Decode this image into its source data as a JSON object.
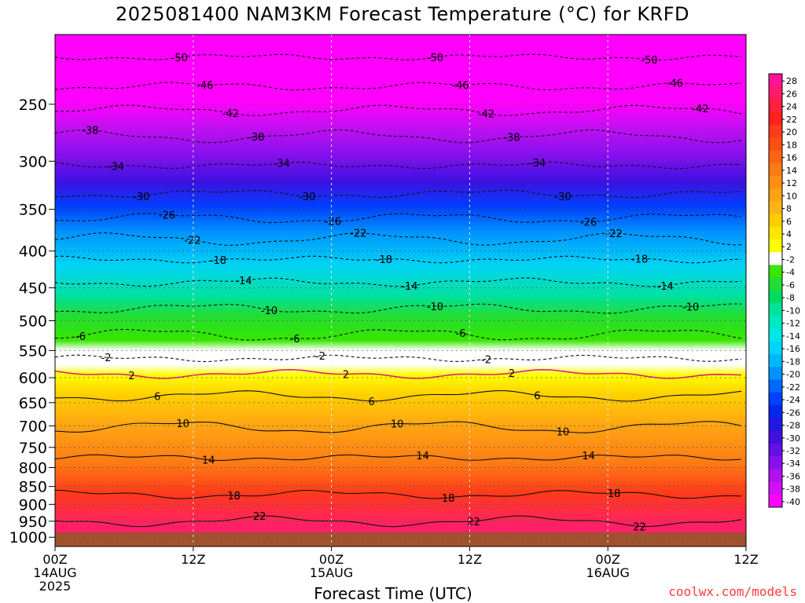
{
  "chart": {
    "title": "2025081400 NAM3KM Forecast Temperature (°C) for KRFD",
    "xlabel": "Forecast Time (UTC)",
    "credit": "coolwx.com/models"
  },
  "chart_data": {
    "type": "heatmap",
    "title": "2025081400 NAM3KM Forecast Temperature (°C) for KRFD",
    "xlabel": "Forecast Time (UTC)",
    "ylabel": "",
    "x_ticks": [
      {
        "hour": 0,
        "line1": "00Z",
        "line2": "14AUG",
        "line3": "2025"
      },
      {
        "hour": 12,
        "line1": "12Z",
        "line2": "",
        "line3": ""
      },
      {
        "hour": 24,
        "line1": "00Z",
        "line2": "15AUG",
        "line3": ""
      },
      {
        "hour": 36,
        "line1": "12Z",
        "line2": "",
        "line3": ""
      },
      {
        "hour": 48,
        "line1": "00Z",
        "line2": "16AUG",
        "line3": ""
      },
      {
        "hour": 60,
        "line1": "12Z",
        "line2": "",
        "line3": ""
      }
    ],
    "xlim_hours": [
      0,
      60
    ],
    "y_ticks": [
      250,
      300,
      350,
      400,
      450,
      500,
      550,
      600,
      650,
      700,
      750,
      800,
      850,
      900,
      950,
      1000
    ],
    "ylim": [
      200,
      1030
    ],
    "y_scale": "log (pressure)",
    "grid": true,
    "colorbar": {
      "labels": [
        "28",
        "26",
        "24",
        "22",
        "20",
        "18",
        "16",
        "14",
        "12",
        "10",
        "8",
        "6",
        "4",
        "2",
        "-2",
        "-4",
        "-6",
        "-8",
        "-10",
        "-12",
        "-14",
        "-16",
        "-18",
        "-20",
        "-22",
        "-24",
        "-26",
        "-28",
        "-30",
        "-32",
        "-34",
        "-36",
        "-38",
        "-40"
      ],
      "colors": [
        "#ff1493",
        "#ff1a6b",
        "#ff1f3f",
        "#ff2020",
        "#ff3a1a",
        "#ff4e14",
        "#ff6414",
        "#ff7a14",
        "#ff8f14",
        "#ffa114",
        "#ffb414",
        "#ffcc00",
        "#ffe600",
        "#ffff00",
        "#ffffff",
        "#38e600",
        "#22dd33",
        "#00dc62",
        "#00e398",
        "#00e8c4",
        "#00e8e8",
        "#00d4ff",
        "#00b8ff",
        "#0092ff",
        "#0068ff",
        "#0040ff",
        "#0028ee",
        "#2018e0",
        "#4010e0",
        "#6410e6",
        "#8a10ee",
        "#b010f2",
        "#d010f8",
        "#ff00ff"
      ]
    },
    "isotherms": [
      {
        "label": "-50",
        "p": 215
      },
      {
        "label": "-46",
        "p": 236
      },
      {
        "label": "-42",
        "p": 255
      },
      {
        "label": "-38",
        "p": 277
      },
      {
        "label": "-34",
        "p": 304
      },
      {
        "label": "-30",
        "p": 333
      },
      {
        "label": "-26",
        "p": 360
      },
      {
        "label": "-22",
        "p": 385
      },
      {
        "label": "-18",
        "p": 411
      },
      {
        "label": "-14",
        "p": 442
      },
      {
        "label": "-10",
        "p": 481
      },
      {
        "label": "-6",
        "p": 523
      },
      {
        "label": "-2",
        "p": 564
      },
      {
        "label": "2",
        "p": 593
      },
      {
        "label": "6",
        "p": 636
      },
      {
        "label": "10",
        "p": 703
      },
      {
        "label": "14",
        "p": 775
      },
      {
        "label": "18",
        "p": 872
      },
      {
        "label": "22",
        "p": 950
      }
    ],
    "ground": {
      "p_top": 985,
      "color": "#a0522d"
    }
  }
}
